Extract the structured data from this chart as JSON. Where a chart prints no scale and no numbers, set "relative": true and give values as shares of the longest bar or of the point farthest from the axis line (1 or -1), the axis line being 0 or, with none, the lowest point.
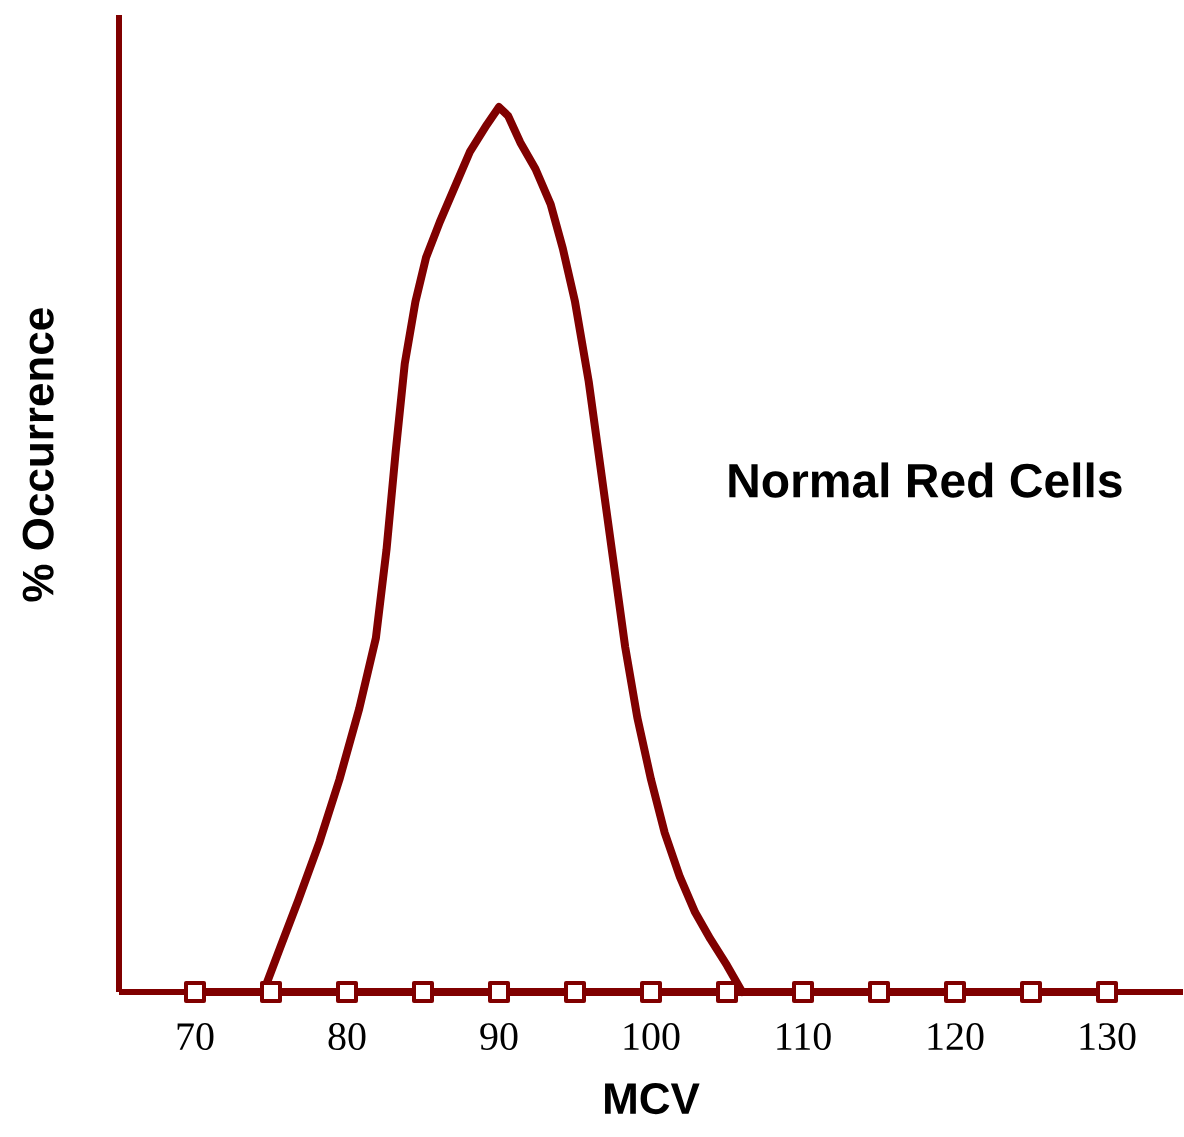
{
  "chart_data": {
    "type": "line",
    "xlabel": "MCV",
    "ylabel": "% Occurrence",
    "annotations": [
      "Normal Red Cells"
    ],
    "relative": true,
    "ref_lines": [
      {
        "axis": "y",
        "value": 0,
        "color": "#800000"
      },
      {
        "axis": "x",
        "value": 65,
        "color": "#800000"
      }
    ],
    "xlim": [
      65,
      135
    ],
    "xticks": [
      70,
      80,
      90,
      100,
      110,
      120,
      130
    ],
    "series": [
      {
        "color": "#800000",
        "marker": "none",
        "x": [
          74.5,
          75.6,
          76.8,
          78.2,
          79.5,
          80.8,
          81.9,
          82.6,
          83.2,
          83.8,
          84.5,
          85.2,
          86.1,
          87.1,
          88.1,
          89.2,
          90.0,
          90.6,
          91.4,
          92.4,
          93.4,
          94.2,
          95.0,
          95.9,
          96.7,
          97.5,
          98.3,
          99.1,
          100.0,
          100.9,
          101.9,
          102.9,
          103.9,
          105.0,
          106.0
        ],
        "values": [
          0,
          0.05,
          0.104,
          0.17,
          0.24,
          0.32,
          0.4,
          0.5,
          0.61,
          0.71,
          0.78,
          0.83,
          0.87,
          0.91,
          0.95,
          0.98,
          1.0,
          0.99,
          0.96,
          0.93,
          0.89,
          0.84,
          0.78,
          0.69,
          0.59,
          0.49,
          0.39,
          0.31,
          0.24,
          0.18,
          0.13,
          0.09,
          0.06,
          0.03,
          0.0
        ]
      },
      {
        "color": "#800000",
        "marker": "square",
        "x": [
          70,
          75,
          80,
          85,
          90,
          95,
          100,
          105,
          110,
          115,
          120,
          125,
          130
        ],
        "values": [
          0,
          0,
          0,
          0,
          0,
          0,
          0,
          0,
          0,
          0,
          0,
          0,
          0
        ]
      }
    ]
  }
}
